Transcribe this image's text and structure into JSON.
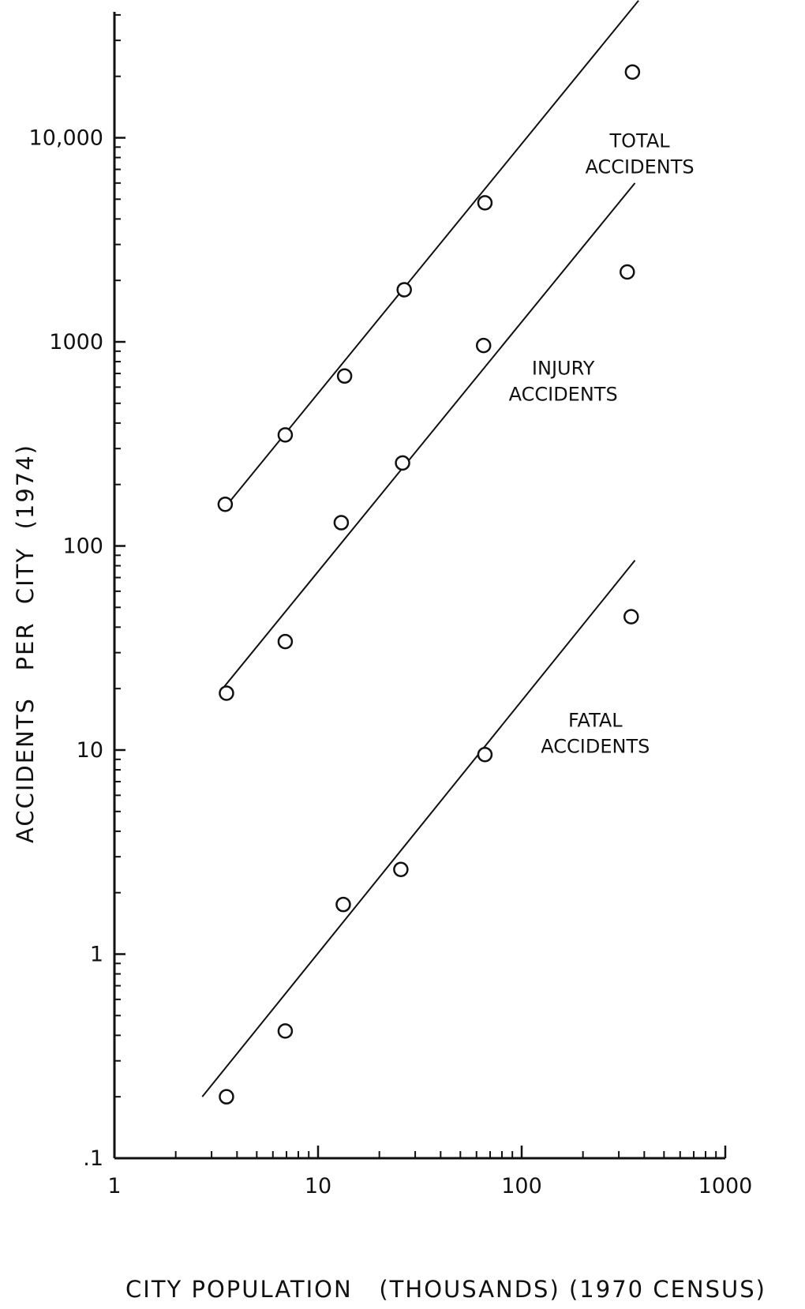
{
  "chart_data": {
    "type": "scatter",
    "title": "",
    "xlabel": "CITY POPULATION   (THOUSANDS) (1970 CENSUS)",
    "ylabel": "ACCIDENTS   PER  CITY  (1974)",
    "x_scale": "log",
    "y_scale": "log",
    "xlim": [
      1,
      1000
    ],
    "ylim": [
      0.1,
      50000
    ],
    "grid": false,
    "x_ticks": [
      {
        "value": 1,
        "label": "1"
      },
      {
        "value": 10,
        "label": "10"
      },
      {
        "value": 100,
        "label": "100"
      },
      {
        "value": 1000,
        "label": "1000"
      }
    ],
    "y_ticks": [
      {
        "value": 0.1,
        "label": ".1"
      },
      {
        "value": 1,
        "label": "1"
      },
      {
        "value": 10,
        "label": "10"
      },
      {
        "value": 100,
        "label": "100"
      },
      {
        "value": 1000,
        "label": "1000"
      },
      {
        "value": 10000,
        "label": "10,000"
      }
    ],
    "series": [
      {
        "name": "TOTAL ACCIDENTS",
        "label_lines": [
          "TOTAL",
          "ACCIDENTS"
        ],
        "label_anchor": [
          380,
          9000
        ],
        "points": [
          {
            "x": 3.5,
            "y": 160
          },
          {
            "x": 6.9,
            "y": 350
          },
          {
            "x": 13.5,
            "y": 680
          },
          {
            "x": 26.5,
            "y": 1800
          },
          {
            "x": 66,
            "y": 4800
          },
          {
            "x": 350,
            "y": 21000
          }
        ],
        "fit_line": {
          "x": [
            3.5,
            375
          ],
          "y": [
            155,
            47000
          ]
        }
      },
      {
        "name": "INJURY ACCIDENTS",
        "label_lines": [
          "INJURY",
          "ACCIDENTS"
        ],
        "label_anchor": [
          160,
          690
        ],
        "points": [
          {
            "x": 3.55,
            "y": 19
          },
          {
            "x": 6.9,
            "y": 34
          },
          {
            "x": 13,
            "y": 130
          },
          {
            "x": 26,
            "y": 255
          },
          {
            "x": 65,
            "y": 960
          },
          {
            "x": 330,
            "y": 2200
          }
        ],
        "fit_line": {
          "x": [
            3.4,
            360
          ],
          "y": [
            20,
            6000
          ]
        }
      },
      {
        "name": "FATAL ACCIDENTS",
        "label_lines": [
          "FATAL",
          "ACCIDENTS"
        ],
        "label_anchor": [
          230,
          13
        ],
        "points": [
          {
            "x": 3.55,
            "y": 0.2
          },
          {
            "x": 6.9,
            "y": 0.42
          },
          {
            "x": 13.3,
            "y": 1.75
          },
          {
            "x": 25.5,
            "y": 2.6
          },
          {
            "x": 66,
            "y": 9.5
          },
          {
            "x": 345,
            "y": 45
          }
        ],
        "fit_line": {
          "x": [
            2.7,
            360
          ],
          "y": [
            0.2,
            85
          ]
        }
      }
    ]
  }
}
